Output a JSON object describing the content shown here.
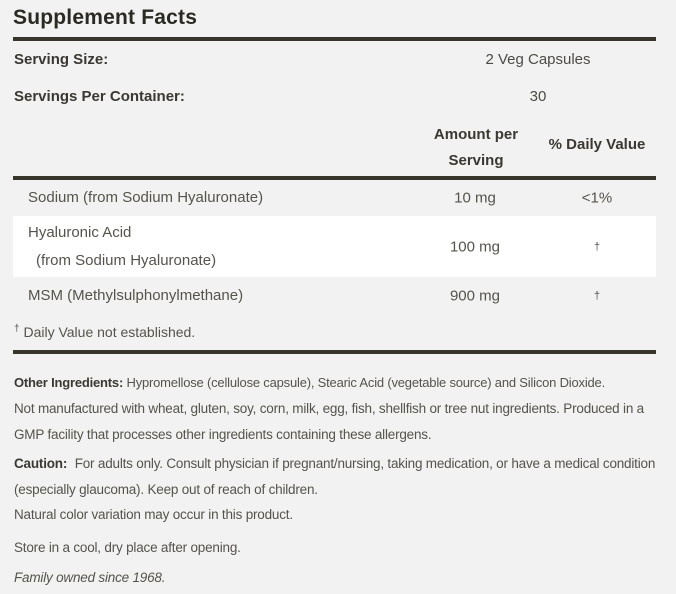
{
  "label": {
    "title": "Supplement Facts",
    "serving": {
      "size_label": "Serving Size:",
      "size_value": "2 Veg Capsules",
      "per_container_label": "Servings Per Container:",
      "per_container_value": "30"
    },
    "columns": {
      "amount": "Amount per Serving",
      "daily_value": "% Daily Value"
    },
    "rows": [
      {
        "name": "Sodium (from Sodium Hyaluronate)",
        "amount": "10 mg",
        "dv": "<1%"
      },
      {
        "name": "Hyaluronic Acid",
        "name_line2": "(from Sodium Hyaluronate)",
        "amount": "100 mg",
        "dv": "†"
      },
      {
        "name": "MSM (Methylsulphonylmethane)",
        "amount": "900 mg",
        "dv": "†"
      }
    ],
    "footnote": {
      "dagger": "†",
      "text": "Daily Value not established."
    },
    "other_ingredients": {
      "label": "Other Ingredients:",
      "text": "Hypromellose (cellulose capsule), Stearic Acid (vegetable source) and Silicon Dioxide."
    },
    "allergen_statement": "Not manufactured with wheat, gluten, soy, corn, milk, egg, fish, shellfish or tree nut ingredients. Produced in a GMP facility that processes other ingredients containing these allergens.",
    "caution": {
      "label": "Caution:",
      "text": "For adults only. Consult physician if pregnant/nursing, taking medication, or have a medical condition (especially glaucoma). Keep out of reach of children."
    },
    "color_note": "Natural color variation may occur in this product.",
    "storage_note": "Store in a cool, dry place after opening.",
    "tagline": "Family owned since 1968.",
    "colors": {
      "background": "#f2f2f2",
      "row_highlight": "#ffffff",
      "rule": "#38352c",
      "title_text": "#2b2923",
      "heading_text": "#3b3833",
      "body_text": "#56534d"
    }
  }
}
